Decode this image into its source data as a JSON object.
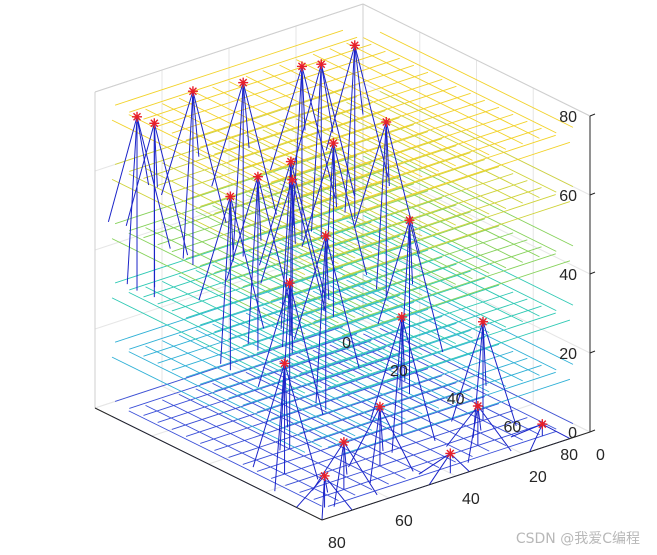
{
  "chart_data": {
    "type": "scatter",
    "dimension": "3d",
    "xlim": [
      0,
      80
    ],
    "ylim": [
      0,
      80
    ],
    "zlim": [
      0,
      80
    ],
    "x_ticks": [
      "0",
      "20",
      "40",
      "60",
      "80"
    ],
    "y_ticks": [
      "0",
      "20",
      "40",
      "60",
      "80"
    ],
    "z_ticks": [
      "0",
      "20",
      "40",
      "60",
      "80"
    ],
    "grid": true,
    "legend": "none",
    "mesh_layers": [
      {
        "z": 0,
        "color": "#3a4fd8"
      },
      {
        "z": 15,
        "color": "#2fb0d6"
      },
      {
        "z": 30,
        "color": "#2fc9b4"
      },
      {
        "z": 45,
        "color": "#86d25a"
      },
      {
        "z": 60,
        "color": "#cfd33a"
      },
      {
        "z": 75,
        "color": "#f2d22a"
      }
    ],
    "points": [
      {
        "x": 5,
        "y": 3,
        "z": 72
      },
      {
        "x": 15,
        "y": 3,
        "z": 70
      },
      {
        "x": 25,
        "y": 8,
        "z": 74
      },
      {
        "x": 40,
        "y": 5,
        "z": 73
      },
      {
        "x": 55,
        "y": 5,
        "z": 75
      },
      {
        "x": 70,
        "y": 3,
        "z": 72
      },
      {
        "x": 75,
        "y": 15,
        "z": 76
      },
      {
        "x": 10,
        "y": 20,
        "z": 60
      },
      {
        "x": 30,
        "y": 25,
        "z": 62
      },
      {
        "x": 50,
        "y": 22,
        "z": 58
      },
      {
        "x": 65,
        "y": 30,
        "z": 60
      },
      {
        "x": 20,
        "y": 40,
        "z": 45
      },
      {
        "x": 45,
        "y": 40,
        "z": 48
      },
      {
        "x": 60,
        "y": 45,
        "z": 42
      },
      {
        "x": 35,
        "y": 55,
        "z": 30
      },
      {
        "x": 70,
        "y": 55,
        "z": 28
      },
      {
        "x": 15,
        "y": 60,
        "z": 25
      },
      {
        "x": 50,
        "y": 65,
        "z": 15
      },
      {
        "x": 25,
        "y": 70,
        "z": 10
      },
      {
        "x": 65,
        "y": 70,
        "z": 12
      },
      {
        "x": 40,
        "y": 78,
        "z": 5
      },
      {
        "x": 10,
        "y": 75,
        "z": 3
      },
      {
        "x": 75,
        "y": 75,
        "z": 8
      },
      {
        "x": 55,
        "y": 40,
        "z": 65
      },
      {
        "x": 30,
        "y": 10,
        "z": 52
      }
    ]
  },
  "watermark": "CSDN @我爱C编程"
}
